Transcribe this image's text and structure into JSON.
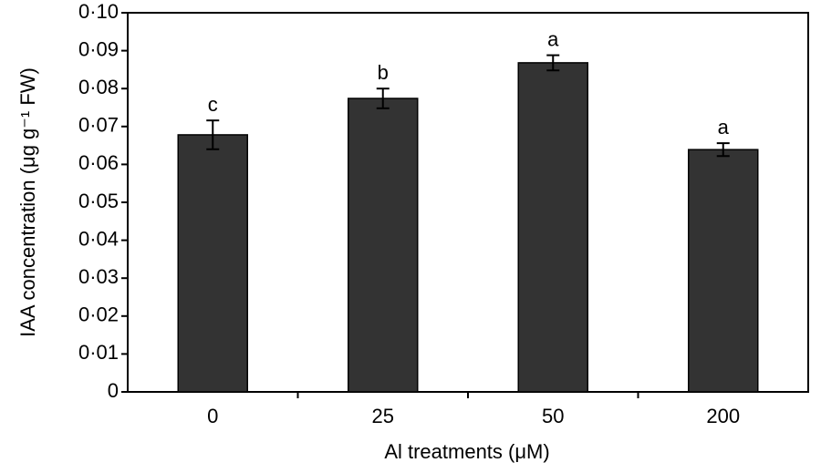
{
  "chart_data": {
    "type": "bar",
    "x_label": "Al treatments (μM)",
    "y_label": "IAA concentration (μg g⁻¹ FW)",
    "categories": [
      "0",
      "25",
      "50",
      "200"
    ],
    "values": [
      0.0678,
      0.0774,
      0.0868,
      0.0639
    ],
    "errors": [
      0.0038,
      0.0026,
      0.002,
      0.0017
    ],
    "annotations": [
      "c",
      "b",
      "a",
      "a"
    ],
    "color": "#333333",
    "ylim": [
      0,
      0.1
    ],
    "yticks": [
      0,
      {
        "value": 0.01,
        "label": "0·01"
      },
      {
        "value": 0.02,
        "label": "0·02"
      },
      {
        "value": 0.03,
        "label": "0·03"
      },
      {
        "value": 0.04,
        "label": "0·04"
      },
      {
        "value": 0.05,
        "label": "0·05"
      },
      {
        "value": 0.06,
        "label": "0·06"
      },
      {
        "value": 0.07,
        "label": "0·07"
      },
      {
        "value": 0.08,
        "label": "0·08"
      },
      {
        "value": 0.09,
        "label": "0·09"
      },
      {
        "value": 0.1,
        "label": "0·10"
      }
    ],
    "grid": false
  }
}
